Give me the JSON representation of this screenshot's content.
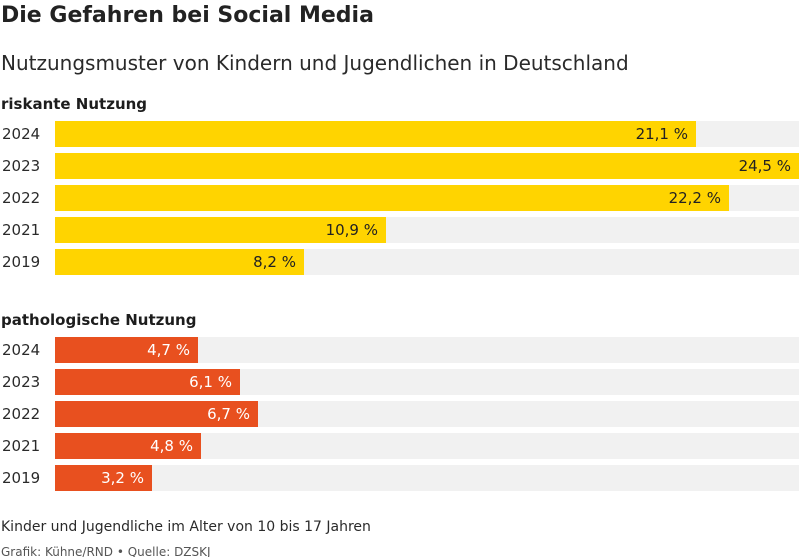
{
  "title": "Die Gefahren bei Social Media",
  "subtitle": "Nutzungsmuster von Kindern und Jugendlichen in Deutschland",
  "footnote": "Kinder und Jugendliche im Alter von 10 bis 17 Jahren",
  "credit": "Grafik: Kühne/RND • Quelle: DZSKJ",
  "colors": {
    "riskante": "#ffd400",
    "pathologische": "#e8501f",
    "track": "#f1f1f1"
  },
  "chart_data": [
    {
      "type": "bar",
      "orientation": "horizontal",
      "title": "riskante Nutzung",
      "categories": [
        "2024",
        "2023",
        "2022",
        "2021",
        "2019"
      ],
      "values": [
        21.1,
        24.5,
        22.2,
        10.9,
        8.2
      ],
      "labels": [
        "21,1 %",
        "24,5 %",
        "22,2 %",
        "10,9 %",
        "8,2 %"
      ],
      "xlim": [
        0,
        24.5
      ],
      "grid": false
    },
    {
      "type": "bar",
      "orientation": "horizontal",
      "title": "pathologische Nutzung",
      "categories": [
        "2024",
        "2023",
        "2022",
        "2021",
        "2019"
      ],
      "values": [
        4.7,
        6.1,
        6.7,
        4.8,
        3.2
      ],
      "labels": [
        "4,7 %",
        "6,1 %",
        "6,7 %",
        "4,8 %",
        "3,2 %"
      ],
      "xlim": [
        0,
        24.5
      ],
      "grid": false
    }
  ]
}
